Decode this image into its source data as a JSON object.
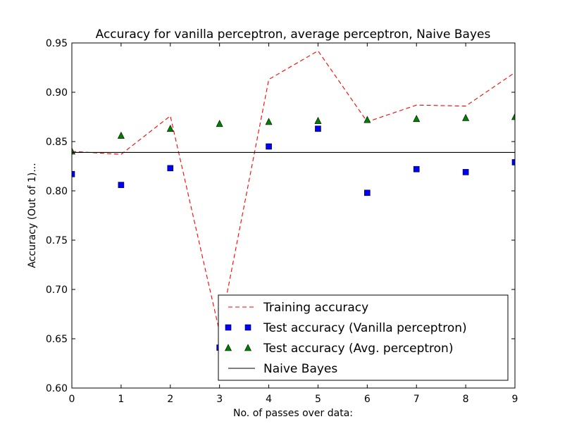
{
  "chart_data": {
    "type": "line",
    "title": "Accuracy for vanilla perceptron, average perceptron, Naive Bayes",
    "xlabel": "No. of passes over data:",
    "ylabel": "Accuracy (Out of 1)...",
    "xlim": [
      0,
      9
    ],
    "ylim": [
      0.6,
      0.95
    ],
    "xticks": [
      "0",
      "1",
      "2",
      "3",
      "4",
      "5",
      "6",
      "7",
      "8",
      "9"
    ],
    "yticks": [
      "0.60",
      "0.65",
      "0.70",
      "0.75",
      "0.80",
      "0.85",
      "0.90",
      "0.95"
    ],
    "grid": false,
    "legend_position": "lower-right",
    "x": [
      0,
      1,
      2,
      3,
      4,
      5,
      6,
      7,
      8,
      9
    ],
    "series": [
      {
        "name": "Training accuracy",
        "style": "dashed-line",
        "color": "#ff0000",
        "values": [
          0.84,
          0.837,
          0.876,
          0.657,
          0.913,
          0.942,
          0.87,
          0.887,
          0.886,
          0.92
        ]
      },
      {
        "name": "Test accuracy (Vanilla perceptron)",
        "style": "square-marker",
        "color": "#0000ff",
        "values": [
          0.817,
          0.806,
          0.823,
          0.641,
          0.845,
          0.863,
          0.798,
          0.822,
          0.819,
          0.829
        ]
      },
      {
        "name": "Test accuracy (Avg. perceptron)",
        "style": "triangle-marker",
        "color": "#008000",
        "values": [
          0.84,
          0.856,
          0.863,
          0.868,
          0.87,
          0.871,
          0.872,
          0.873,
          0.874,
          0.875
        ]
      },
      {
        "name": "Naive Bayes",
        "style": "solid-line",
        "color": "#000000",
        "values": [
          0.839,
          0.839,
          0.839,
          0.839,
          0.839,
          0.839,
          0.839,
          0.839,
          0.839,
          0.839
        ]
      }
    ]
  }
}
